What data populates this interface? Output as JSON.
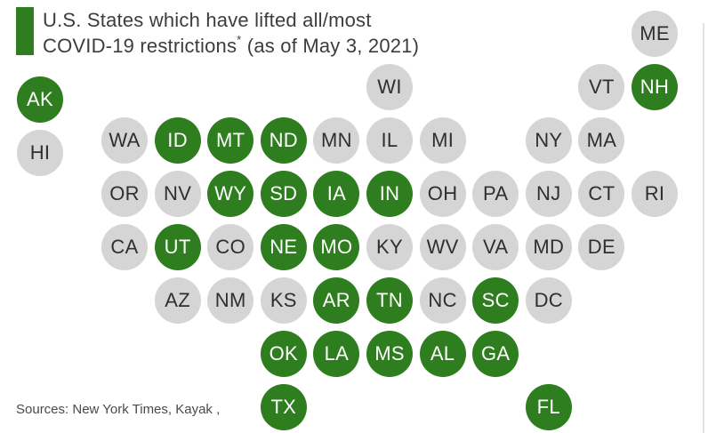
{
  "title": {
    "line1": "U.S. States which have lifted all/most",
    "line2_before_asterisk": "COVID-19 restrictions",
    "asterisk": "*",
    "line2_after_asterisk": " (as of May 3, 2021)"
  },
  "source_note": "Sources: New York Times, Kayak ,",
  "colors": {
    "accent_bar": "#2e7d1e",
    "lifted_fill": "#2e7d1e",
    "lifted_text": "#ffffff",
    "not_lifted_fill": "#d5d5d5",
    "not_lifted_text": "#2f2f2f"
  },
  "chart_data": {
    "type": "tile-map",
    "title": "U.S. States which have lifted all/most COVID-19 restrictions* (as of May 3, 2021)",
    "value_meaning": {
      "green": "lifted all/most restrictions",
      "gray": "not lifted"
    },
    "states": [
      {
        "abbr": "ME",
        "row": 0,
        "col": 11,
        "lifted": false
      },
      {
        "abbr": "AK",
        "row": 1,
        "col": 0,
        "lifted": true
      },
      {
        "abbr": "WI",
        "row": 1,
        "col": 6,
        "lifted": false
      },
      {
        "abbr": "VT",
        "row": 1,
        "col": 10,
        "lifted": false
      },
      {
        "abbr": "NH",
        "row": 1,
        "col": 11,
        "lifted": true
      },
      {
        "abbr": "HI",
        "row": 2,
        "col": 0,
        "lifted": false
      },
      {
        "abbr": "WA",
        "row": 2,
        "col": 1,
        "lifted": false
      },
      {
        "abbr": "ID",
        "row": 2,
        "col": 2,
        "lifted": true
      },
      {
        "abbr": "MT",
        "row": 2,
        "col": 3,
        "lifted": true
      },
      {
        "abbr": "ND",
        "row": 2,
        "col": 4,
        "lifted": true
      },
      {
        "abbr": "MN",
        "row": 2,
        "col": 5,
        "lifted": false
      },
      {
        "abbr": "IL",
        "row": 2,
        "col": 6,
        "lifted": false
      },
      {
        "abbr": "MI",
        "row": 2,
        "col": 7,
        "lifted": false
      },
      {
        "abbr": "NY",
        "row": 2,
        "col": 9,
        "lifted": false
      },
      {
        "abbr": "MA",
        "row": 2,
        "col": 10,
        "lifted": false
      },
      {
        "abbr": "OR",
        "row": 3,
        "col": 1,
        "lifted": false
      },
      {
        "abbr": "NV",
        "row": 3,
        "col": 2,
        "lifted": false
      },
      {
        "abbr": "WY",
        "row": 3,
        "col": 3,
        "lifted": true
      },
      {
        "abbr": "SD",
        "row": 3,
        "col": 4,
        "lifted": true
      },
      {
        "abbr": "IA",
        "row": 3,
        "col": 5,
        "lifted": true
      },
      {
        "abbr": "IN",
        "row": 3,
        "col": 6,
        "lifted": true
      },
      {
        "abbr": "OH",
        "row": 3,
        "col": 7,
        "lifted": false
      },
      {
        "abbr": "PA",
        "row": 3,
        "col": 8,
        "lifted": false
      },
      {
        "abbr": "NJ",
        "row": 3,
        "col": 9,
        "lifted": false
      },
      {
        "abbr": "CT",
        "row": 3,
        "col": 10,
        "lifted": false
      },
      {
        "abbr": "RI",
        "row": 3,
        "col": 11,
        "lifted": false
      },
      {
        "abbr": "CA",
        "row": 4,
        "col": 1,
        "lifted": false
      },
      {
        "abbr": "UT",
        "row": 4,
        "col": 2,
        "lifted": true
      },
      {
        "abbr": "CO",
        "row": 4,
        "col": 3,
        "lifted": false
      },
      {
        "abbr": "NE",
        "row": 4,
        "col": 4,
        "lifted": true
      },
      {
        "abbr": "MO",
        "row": 4,
        "col": 5,
        "lifted": true
      },
      {
        "abbr": "KY",
        "row": 4,
        "col": 6,
        "lifted": false
      },
      {
        "abbr": "WV",
        "row": 4,
        "col": 7,
        "lifted": false
      },
      {
        "abbr": "VA",
        "row": 4,
        "col": 8,
        "lifted": false
      },
      {
        "abbr": "MD",
        "row": 4,
        "col": 9,
        "lifted": false
      },
      {
        "abbr": "DE",
        "row": 4,
        "col": 10,
        "lifted": false
      },
      {
        "abbr": "AZ",
        "row": 5,
        "col": 2,
        "lifted": false
      },
      {
        "abbr": "NM",
        "row": 5,
        "col": 3,
        "lifted": false
      },
      {
        "abbr": "KS",
        "row": 5,
        "col": 4,
        "lifted": false
      },
      {
        "abbr": "AR",
        "row": 5,
        "col": 5,
        "lifted": true
      },
      {
        "abbr": "TN",
        "row": 5,
        "col": 6,
        "lifted": true
      },
      {
        "abbr": "NC",
        "row": 5,
        "col": 7,
        "lifted": false
      },
      {
        "abbr": "SC",
        "row": 5,
        "col": 8,
        "lifted": true
      },
      {
        "abbr": "DC",
        "row": 5,
        "col": 9,
        "lifted": false
      },
      {
        "abbr": "OK",
        "row": 6,
        "col": 4,
        "lifted": true
      },
      {
        "abbr": "LA",
        "row": 6,
        "col": 5,
        "lifted": true
      },
      {
        "abbr": "MS",
        "row": 6,
        "col": 6,
        "lifted": true
      },
      {
        "abbr": "AL",
        "row": 6,
        "col": 7,
        "lifted": true
      },
      {
        "abbr": "GA",
        "row": 6,
        "col": 8,
        "lifted": true
      },
      {
        "abbr": "TX",
        "row": 7,
        "col": 4,
        "lifted": true
      },
      {
        "abbr": "FL",
        "row": 7,
        "col": 9,
        "lifted": true
      }
    ]
  }
}
